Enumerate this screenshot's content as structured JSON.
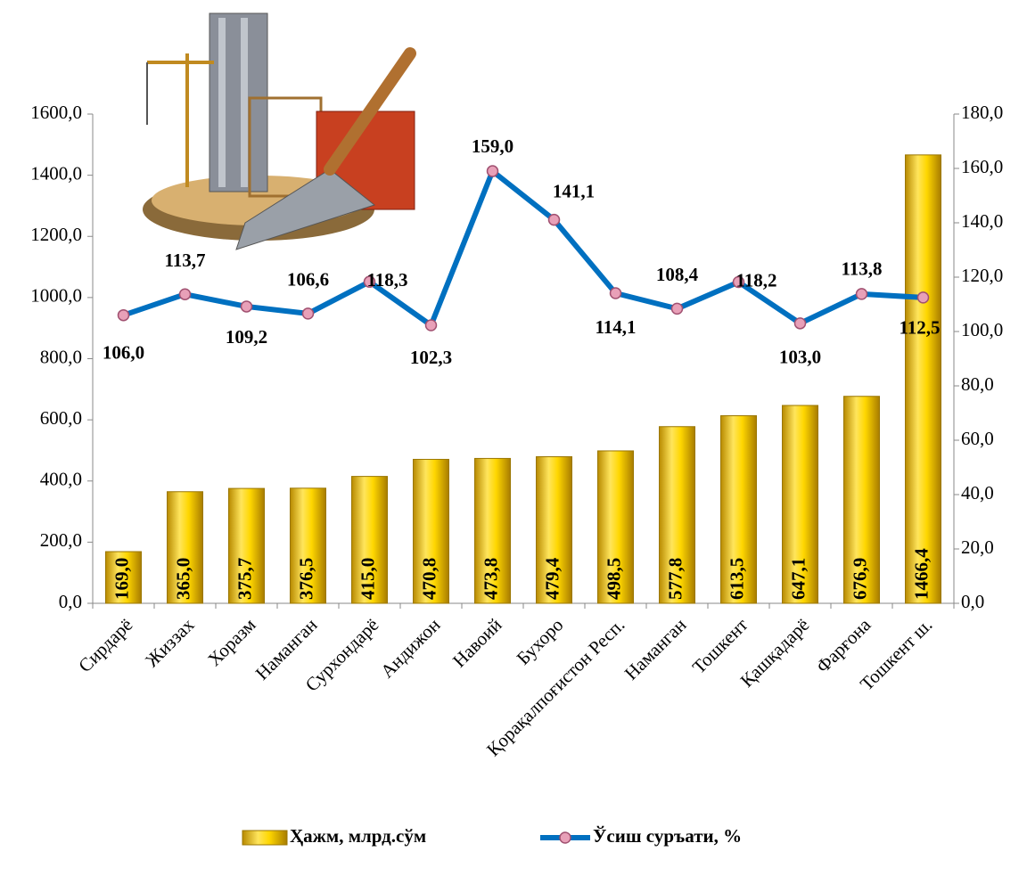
{
  "chart_data": {
    "type": "combo",
    "categories": [
      "Сирдарё",
      "Жиззах",
      "Хоразм",
      "Наманган",
      "Сурхондарё",
      "Андижон",
      "Навоий",
      "Бухоро",
      "Қорақалпоғистон Респ.",
      "Наманган",
      "Тошкент",
      "Қашқадарё",
      "Фарғона",
      "Тошкент ш."
    ],
    "series": [
      {
        "name": "Ҳажм, млрд.сўм",
        "type": "bar",
        "color": "#f2c200",
        "values": [
          169.0,
          365.0,
          375.7,
          376.5,
          415.0,
          470.8,
          473.8,
          479.4,
          498.5,
          577.8,
          613.5,
          647.1,
          676.9,
          1466.4
        ],
        "value_labels": [
          "169,0",
          "365,0",
          "375,7",
          "376,5",
          "415,0",
          "470,8",
          "473,8",
          "479,4",
          "498,5",
          "577,8",
          "613,5",
          "647,1",
          "676,9",
          "1466,4"
        ]
      },
      {
        "name": "Ўсиш суръати, %",
        "type": "line",
        "axis": "y2",
        "color": "#0070c0",
        "values": [
          106.0,
          113.7,
          109.2,
          106.6,
          118.3,
          102.3,
          159.0,
          141.1,
          114.1,
          108.4,
          118.2,
          103.0,
          113.8,
          112.5
        ],
        "value_labels": [
          "106,0",
          "113,7",
          "109,2",
          "106,6",
          "118,3",
          "102,3",
          "159,0",
          "141,1",
          "114,1",
          "108,4",
          "118,2",
          "103,0",
          "113,8",
          "112,5"
        ]
      }
    ],
    "ylim": [
      0,
      1600
    ],
    "yticks": [
      {
        "value": 0,
        "label": "0,0"
      },
      {
        "value": 200,
        "label": "200,0"
      },
      {
        "value": 400,
        "label": "400,0"
      },
      {
        "value": 600,
        "label": "600,0"
      },
      {
        "value": 800,
        "label": "800,0"
      },
      {
        "value": 1000,
        "label": "1000,0"
      },
      {
        "value": 1200,
        "label": "1200,0"
      },
      {
        "value": 1400,
        "label": "1400,0"
      },
      {
        "value": 1600,
        "label": "1600,0"
      }
    ],
    "y2lim": [
      0,
      180
    ],
    "y2ticks": [
      {
        "value": 0,
        "label": "0,0"
      },
      {
        "value": 20,
        "label": "20,0"
      },
      {
        "value": 40,
        "label": "40,0"
      },
      {
        "value": 60,
        "label": "60,0"
      },
      {
        "value": 80,
        "label": "80,0"
      },
      {
        "value": 100,
        "label": "100,0"
      },
      {
        "value": 120,
        "label": "120,0"
      },
      {
        "value": 140,
        "label": "140,0"
      },
      {
        "value": 160,
        "label": "160,0"
      },
      {
        "value": 180,
        "label": "180,0"
      }
    ]
  }
}
